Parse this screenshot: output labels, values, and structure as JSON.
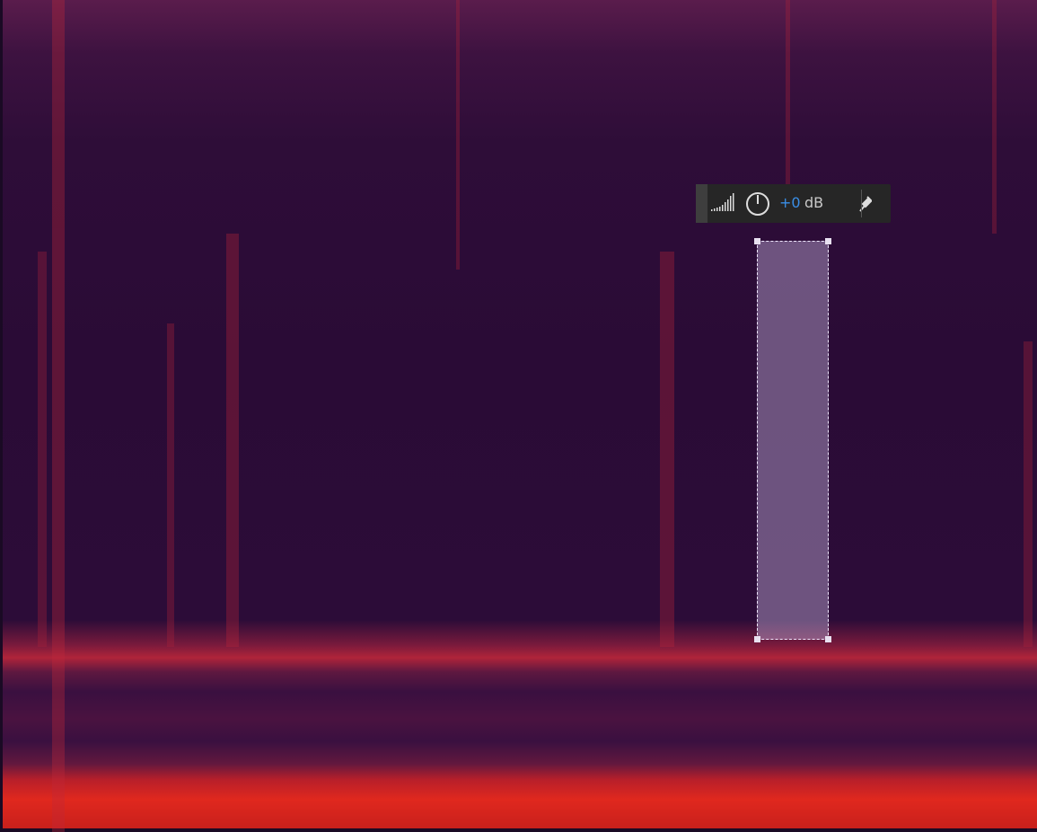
{
  "hud": {
    "gain": "+0",
    "unit": "dB"
  }
}
